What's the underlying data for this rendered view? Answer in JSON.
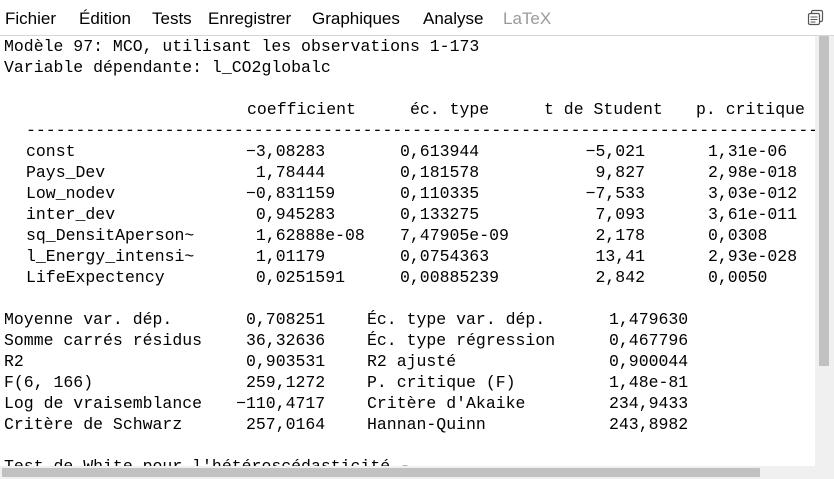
{
  "menu": [
    "Fichier",
    "Édition",
    "Tests",
    "Enregistrer",
    "Graphiques",
    "Analyse",
    "LaTeX"
  ],
  "header": {
    "line1": "Modèle 97: MCO, utilisant les observations 1-173",
    "line2": "Variable dépendante: l_CO2globalc"
  },
  "columns": {
    "coef": "coefficient",
    "se": "éc. type",
    "t": "t de Student",
    "p": "p. critique"
  },
  "separator": "-------------------------------------------------------------------------------------------",
  "rows": [
    {
      "name": "const",
      "coef": "−3,08283",
      "se": "0,613944",
      "t": "−5,021",
      "p": "1,31e-06"
    },
    {
      "name": "Pays_Dev",
      "coef": "1,78444",
      "se": "0,181578",
      "t": "9,827",
      "p": "2,98e-018"
    },
    {
      "name": "Low_nodev",
      "coef": "−0,831159",
      "se": "0,110335",
      "t": "−7,533",
      "p": "3,03e-012"
    },
    {
      "name": "inter_dev",
      "coef": "0,945283",
      "se": "0,133275",
      "t": "7,093",
      "p": "3,61e-011"
    },
    {
      "name": "sq_DensitAperson~",
      "coef": "1,62888e-08",
      "se": "7,47905e-09",
      "t": "2,178",
      "p": "0,0308"
    },
    {
      "name": "l_Energy_intensi~",
      "coef": "1,01179",
      "se": "0,0754363",
      "t": "13,41",
      "p": "2,93e-028"
    },
    {
      "name": "LifeExpectency",
      "coef": "0,0251591",
      "se": "0,00885239",
      "t": "2,842",
      "p": "0,0050"
    }
  ],
  "stats": [
    {
      "l1": "Moyenne var. dép.",
      "v1": "0,708251",
      "l2": "Éc. type var. dép.",
      "v2": "1,479630"
    },
    {
      "l1": "Somme carrés résidus",
      "v1": "36,32636",
      "l2": "Éc. type régression",
      "v2": "0,467796"
    },
    {
      "l1": "R2",
      "v1": "0,903531",
      "l2": "R2 ajusté",
      "v2": "0,900044"
    },
    {
      "l1": "F(6, 166)",
      "v1": "259,1272",
      "l2": "P. critique (F)",
      "v2": "1,48e-81"
    },
    {
      "l1": "Log de vraisemblance",
      "v1": "−110,4717",
      "l2": "Critère d'Akaike",
      "v2": "234,9433"
    },
    {
      "l1": "Critère de Schwarz",
      "v1": "257,0164",
      "l2": "Hannan-Quinn",
      "v2": "243,8982"
    }
  ],
  "footer": "Test de White pour l'hétéroscédasticité -"
}
